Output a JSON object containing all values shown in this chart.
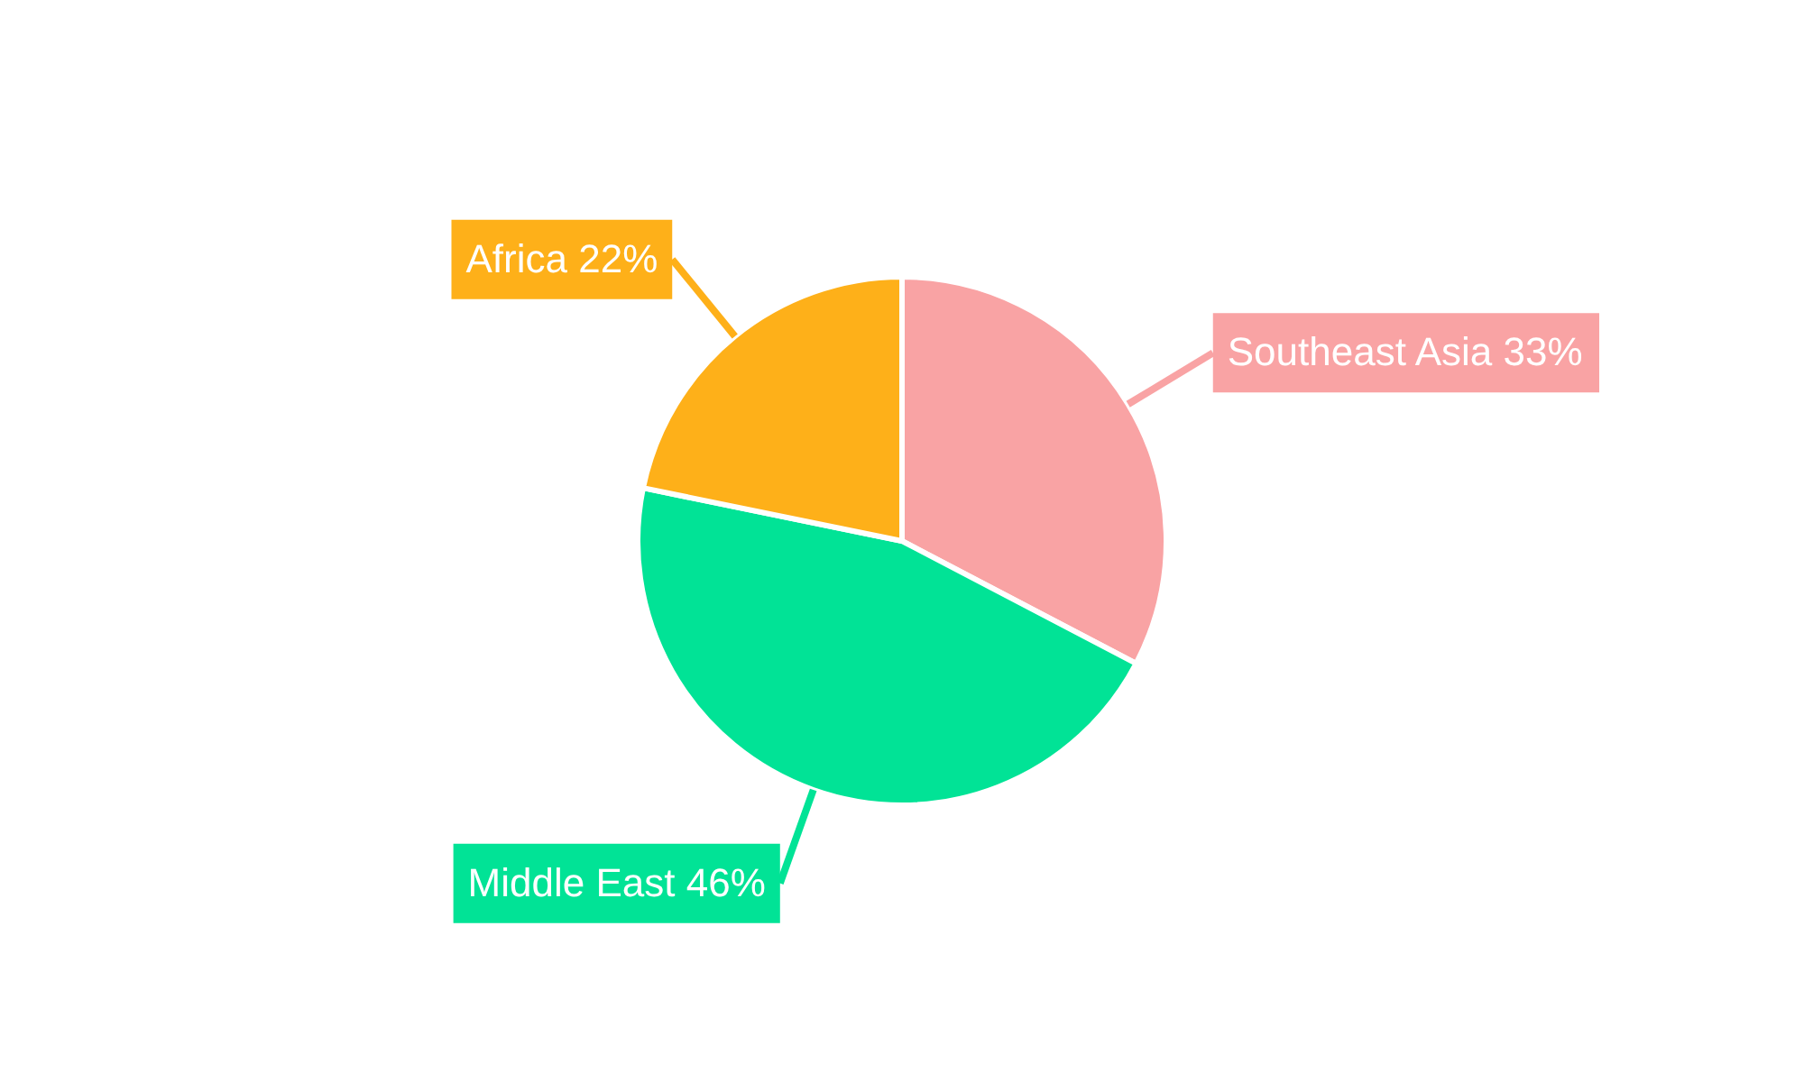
{
  "chart_data": {
    "type": "pie",
    "categories": [
      "Southeast Asia",
      "Middle East",
      "Africa"
    ],
    "values": [
      33,
      46,
      22
    ],
    "value_labels": [
      "33%",
      "46%",
      "22%"
    ],
    "colors": [
      "#f9a3a4",
      "#01e396",
      "#feb019"
    ],
    "legend": false
  }
}
